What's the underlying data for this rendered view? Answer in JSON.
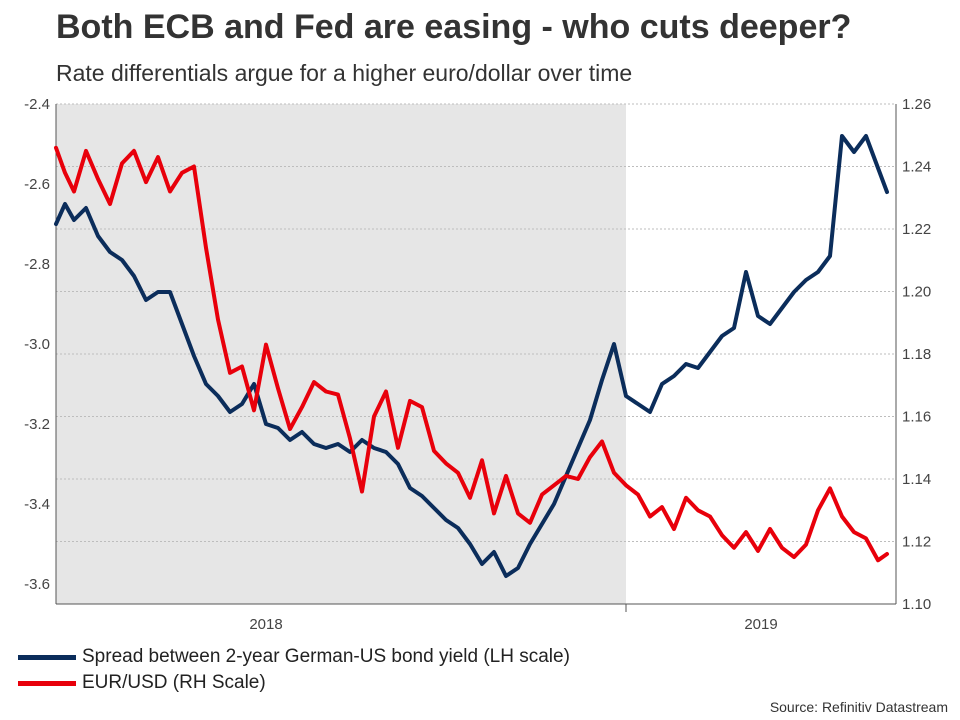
{
  "chart_data": {
    "type": "line",
    "title": "Both ECB and Fed are easing - who cuts deeper?",
    "subtitle": "Rate differentials argue for a higher euro/dollar over time",
    "source": "Source: Refinitiv Datastream",
    "x_labels": [
      "2018",
      "2019"
    ],
    "x_range": [
      "2017-06",
      "2019-10"
    ],
    "shaded_period": [
      "2017-06",
      "2019-01"
    ],
    "y_left": {
      "min": -3.65,
      "max": -2.4,
      "ticks": [
        "-2.4",
        "-2.6",
        "-2.8",
        "-3.0",
        "-3.2",
        "-3.4",
        "-3.6"
      ]
    },
    "y_right": {
      "min": 1.1,
      "max": 1.26,
      "ticks": [
        "1.26",
        "1.24",
        "1.22",
        "1.20",
        "1.18",
        "1.16",
        "1.14",
        "1.12",
        "1.10"
      ]
    },
    "grid": true,
    "series": [
      {
        "name": "Spread between 2-year German-US bond yield (LH scale)",
        "axis": "left",
        "color": "#0b2d5b",
        "x": [
          0,
          0.3,
          0.6,
          1.0,
          1.4,
          1.8,
          2.2,
          2.6,
          3.0,
          3.4,
          3.8,
          4.2,
          4.6,
          5.0,
          5.4,
          5.8,
          6.2,
          6.6,
          7.0,
          7.4,
          7.8,
          8.2,
          8.6,
          9.0,
          9.4,
          9.8,
          10.2,
          10.6,
          11.0,
          11.4,
          11.8,
          12.2,
          12.6,
          13.0,
          13.4,
          13.8,
          14.2,
          14.6,
          15.0,
          15.4,
          15.8,
          16.2,
          16.6,
          17.0,
          17.4,
          17.8,
          18.2,
          18.6,
          19.0,
          19.4,
          19.8,
          20.2,
          20.6,
          21.0,
          21.4,
          21.8,
          22.2,
          22.6,
          23.0,
          23.4,
          23.8,
          24.2,
          24.6,
          25.0,
          25.4,
          25.8,
          26.2,
          26.6,
          27.0,
          27.4,
          27.7
        ],
        "values": [
          -2.7,
          -2.65,
          -2.69,
          -2.66,
          -2.73,
          -2.77,
          -2.79,
          -2.83,
          -2.89,
          -2.87,
          -2.87,
          -2.95,
          -3.03,
          -3.1,
          -3.13,
          -3.17,
          -3.15,
          -3.1,
          -3.2,
          -3.21,
          -3.24,
          -3.22,
          -3.25,
          -3.26,
          -3.25,
          -3.27,
          -3.24,
          -3.26,
          -3.27,
          -3.3,
          -3.36,
          -3.38,
          -3.41,
          -3.44,
          -3.46,
          -3.5,
          -3.55,
          -3.52,
          -3.58,
          -3.56,
          -3.5,
          -3.45,
          -3.4,
          -3.33,
          -3.26,
          -3.19,
          -3.09,
          -3.0,
          -3.13,
          -3.15,
          -3.17,
          -3.1,
          -3.08,
          -3.05,
          -3.06,
          -3.02,
          -2.98,
          -2.96,
          -2.82,
          -2.93,
          -2.95,
          -2.91,
          -2.87,
          -2.84,
          -2.82,
          -2.78,
          -2.48,
          -2.52,
          -2.48,
          -2.56,
          -2.62
        ]
      },
      {
        "name": "EUR/USD (RH Scale)",
        "axis": "right",
        "color": "#e8000b",
        "x": [
          0,
          0.3,
          0.6,
          1.0,
          1.4,
          1.8,
          2.2,
          2.6,
          3.0,
          3.4,
          3.8,
          4.2,
          4.6,
          5.0,
          5.4,
          5.8,
          6.2,
          6.6,
          7.0,
          7.4,
          7.8,
          8.2,
          8.6,
          9.0,
          9.4,
          9.8,
          10.2,
          10.6,
          11.0,
          11.4,
          11.8,
          12.2,
          12.6,
          13.0,
          13.4,
          13.8,
          14.2,
          14.6,
          15.0,
          15.4,
          15.8,
          16.2,
          16.6,
          17.0,
          17.4,
          17.8,
          18.2,
          18.6,
          19.0,
          19.4,
          19.8,
          20.2,
          20.6,
          21.0,
          21.4,
          21.8,
          22.2,
          22.6,
          23.0,
          23.4,
          23.8,
          24.2,
          24.6,
          25.0,
          25.4,
          25.8,
          26.2,
          26.6,
          27.0,
          27.4,
          27.7
        ],
        "values": [
          1.246,
          1.238,
          1.232,
          1.245,
          1.236,
          1.228,
          1.241,
          1.245,
          1.235,
          1.243,
          1.232,
          1.238,
          1.24,
          1.214,
          1.191,
          1.174,
          1.176,
          1.162,
          1.183,
          1.169,
          1.156,
          1.163,
          1.171,
          1.168,
          1.167,
          1.153,
          1.136,
          1.16,
          1.168,
          1.15,
          1.165,
          1.163,
          1.149,
          1.145,
          1.142,
          1.134,
          1.146,
          1.129,
          1.141,
          1.129,
          1.126,
          1.135,
          1.138,
          1.141,
          1.14,
          1.147,
          1.152,
          1.142,
          1.138,
          1.135,
          1.128,
          1.131,
          1.124,
          1.134,
          1.13,
          1.128,
          1.122,
          1.118,
          1.123,
          1.117,
          1.124,
          1.118,
          1.115,
          1.119,
          1.13,
          1.137,
          1.128,
          1.123,
          1.121,
          1.114,
          1.116
        ]
      }
    ]
  }
}
